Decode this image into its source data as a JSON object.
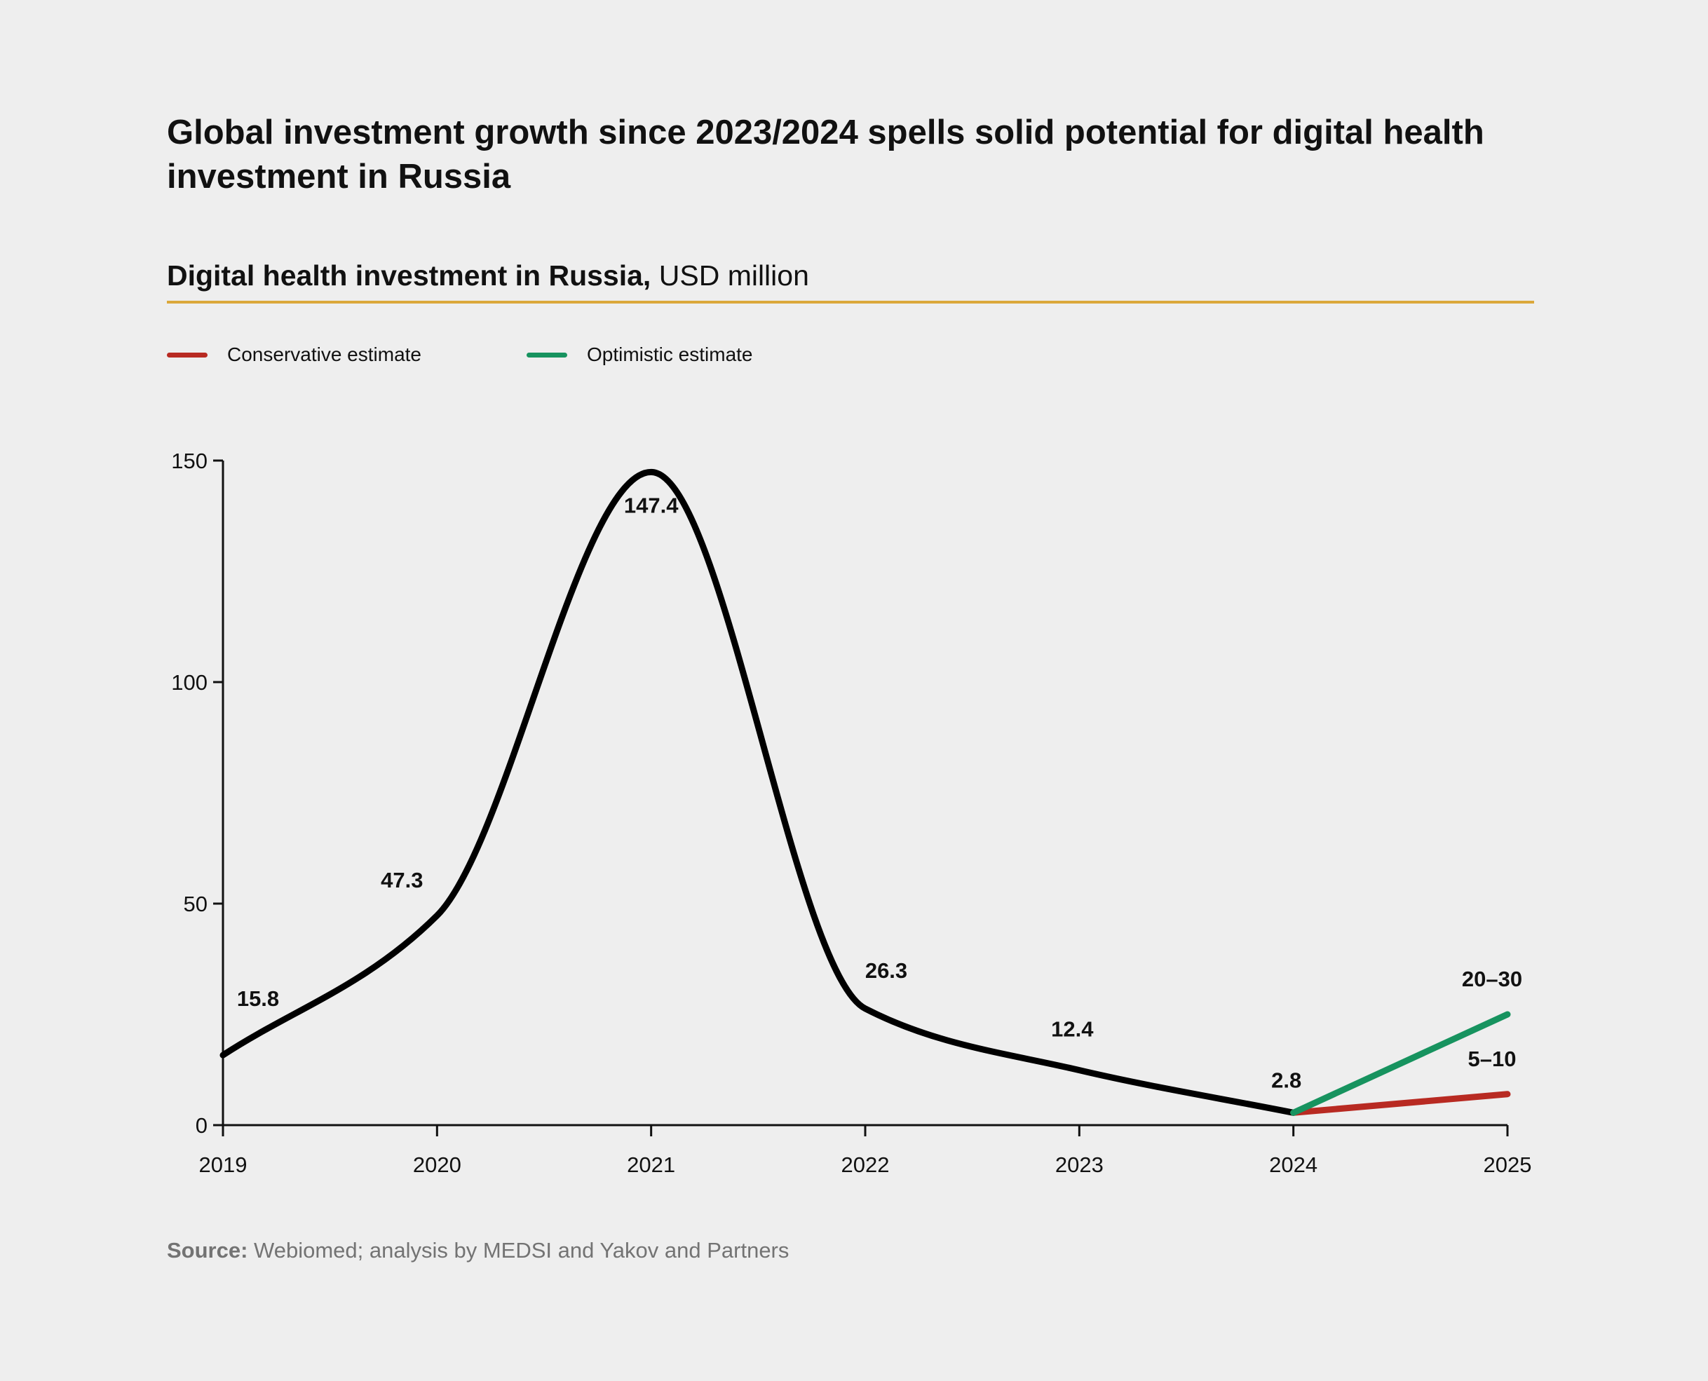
{
  "header": {
    "title": "Global investment growth since 2023/2024 spells solid potential for digital health investment in Russia",
    "subtitle_bold": "Digital health investment in Russia,",
    "subtitle_unit": "USD million"
  },
  "legend": {
    "items": [
      {
        "label": "Conservative estimate",
        "color": "#b82a22"
      },
      {
        "label": "Optimistic estimate",
        "color": "#17935f"
      }
    ]
  },
  "chart_data": {
    "type": "line",
    "x": [
      "2019",
      "2020",
      "2021",
      "2022",
      "2023",
      "2024",
      "2025"
    ],
    "ylim": [
      0,
      150
    ],
    "yticks": [
      "0",
      "50",
      "100",
      "150"
    ],
    "grid": false,
    "legend_position": "top-left",
    "series": [
      {
        "values": [
          15.8,
          47.3,
          147.4,
          26.3,
          12.4,
          2.8,
          null
        ],
        "labels": [
          "15.8",
          "47.3",
          "147.4",
          "26.3",
          "12.4",
          "2.8",
          null
        ],
        "color": "#000000",
        "smooth": true
      },
      {
        "name": "Conservative estimate",
        "values": [
          null,
          null,
          null,
          null,
          null,
          2.8,
          7
        ],
        "labels": [
          null,
          null,
          null,
          null,
          null,
          null,
          "5–10"
        ],
        "color": "#b82a22"
      },
      {
        "name": "Optimistic estimate",
        "values": [
          null,
          null,
          null,
          null,
          null,
          2.8,
          25
        ],
        "labels": [
          null,
          null,
          null,
          null,
          null,
          null,
          "20–30"
        ],
        "color": "#17935f"
      }
    ]
  },
  "footer": {
    "source_bold": "Source:",
    "source_text": "Webiomed; analysis by MEDSI and Yakov and Partners"
  }
}
